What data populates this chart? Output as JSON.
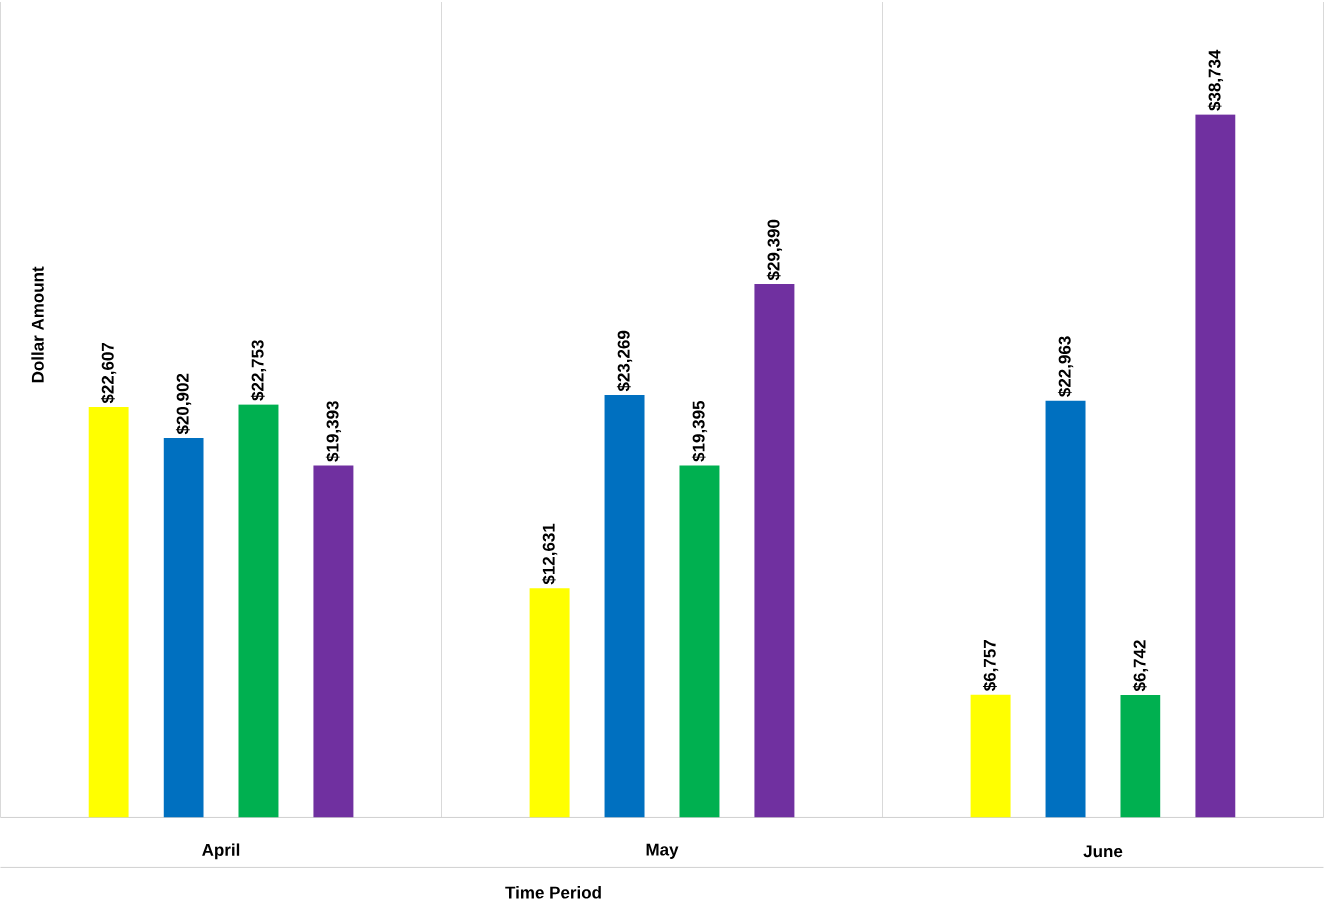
{
  "chart_data": {
    "type": "bar",
    "xlabel": "Time Period",
    "ylabel": "Dollar Amount",
    "categories": [
      "April",
      "May",
      "June"
    ],
    "series": [
      {
        "color": "#ffff00",
        "values": [
          22607,
          12631,
          6757
        ],
        "value_labels": [
          "$22,607",
          "$12,631",
          "$6,757"
        ]
      },
      {
        "color": "#0070c0",
        "values": [
          20902,
          23269,
          22963
        ],
        "value_labels": [
          "$20,902",
          "$23,269",
          "$22,963"
        ]
      },
      {
        "color": "#00b050",
        "values": [
          22753,
          19395,
          6742
        ],
        "value_labels": [
          "$22,753",
          "$19,395",
          "$6,742"
        ]
      },
      {
        "color": "#7030a0",
        "values": [
          19393,
          29390,
          38734
        ],
        "value_labels": [
          "$19,393",
          "$29,390",
          "$38,734"
        ]
      }
    ],
    "grid": "x",
    "tick_labels": "x"
  }
}
